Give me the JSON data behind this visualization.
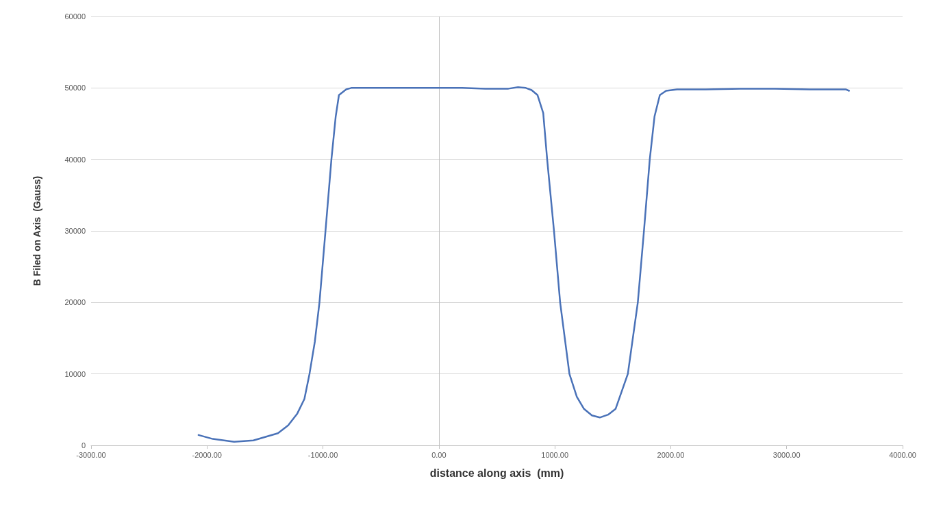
{
  "chart_data": {
    "type": "line",
    "xlabel": "distance along axis  (mm)",
    "ylabel": "B Filed on Axis  (Gauss)",
    "series": [
      {
        "color": "#4a72b8",
        "x": [
          -2073,
          -1950,
          -1766,
          -1600,
          -1388,
          -1300,
          -1223,
          -1160,
          -1116,
          -1070,
          -1030,
          -978,
          -927,
          -890,
          -862,
          -800,
          -756,
          -600,
          -400,
          -200,
          0,
          200,
          400,
          600,
          683,
          750,
          800,
          851,
          900,
          934,
          993,
          1046,
          1126,
          1190,
          1252,
          1320,
          1388,
          1460,
          1524,
          1630,
          1716,
          1769,
          1819,
          1860,
          1906,
          1960,
          2054,
          2300,
          2600,
          2900,
          3200,
          3509,
          3538
        ],
        "values": [
          1450,
          900,
          500,
          700,
          1700,
          2800,
          4400,
          6500,
          10000,
          14500,
          20000,
          30000,
          40000,
          46000,
          49000,
          49800,
          50000,
          50000,
          50000,
          50000,
          50000,
          50000,
          49900,
          49900,
          50100,
          50000,
          49700,
          49000,
          46500,
          40000,
          30000,
          20000,
          10000,
          6800,
          5100,
          4200,
          3900,
          4300,
          5100,
          10000,
          20000,
          30000,
          40000,
          46000,
          49000,
          49600,
          49800,
          49800,
          49900,
          49900,
          49800,
          49800,
          49600
        ]
      }
    ],
    "xlim": [
      -3000,
      4000
    ],
    "xticks": [
      {
        "value": -3000,
        "label": "-3000.00"
      },
      {
        "value": -2000,
        "label": "-2000.00"
      },
      {
        "value": -1000,
        "label": "-1000.00"
      },
      {
        "value": 0,
        "label": "0.00"
      },
      {
        "value": 1000,
        "label": "1000.00"
      },
      {
        "value": 2000,
        "label": "2000.00"
      },
      {
        "value": 3000,
        "label": "3000.00"
      },
      {
        "value": 4000,
        "label": "4000.00"
      }
    ],
    "ylim": [
      0,
      60000
    ],
    "yticks": [
      0,
      10000,
      20000,
      30000,
      40000,
      50000,
      60000
    ],
    "grid": "y",
    "marker": "none",
    "line_style": "solid",
    "ref_lines": [
      {
        "axis": "x",
        "value": 0,
        "color": "#bfbfbf"
      }
    ]
  }
}
